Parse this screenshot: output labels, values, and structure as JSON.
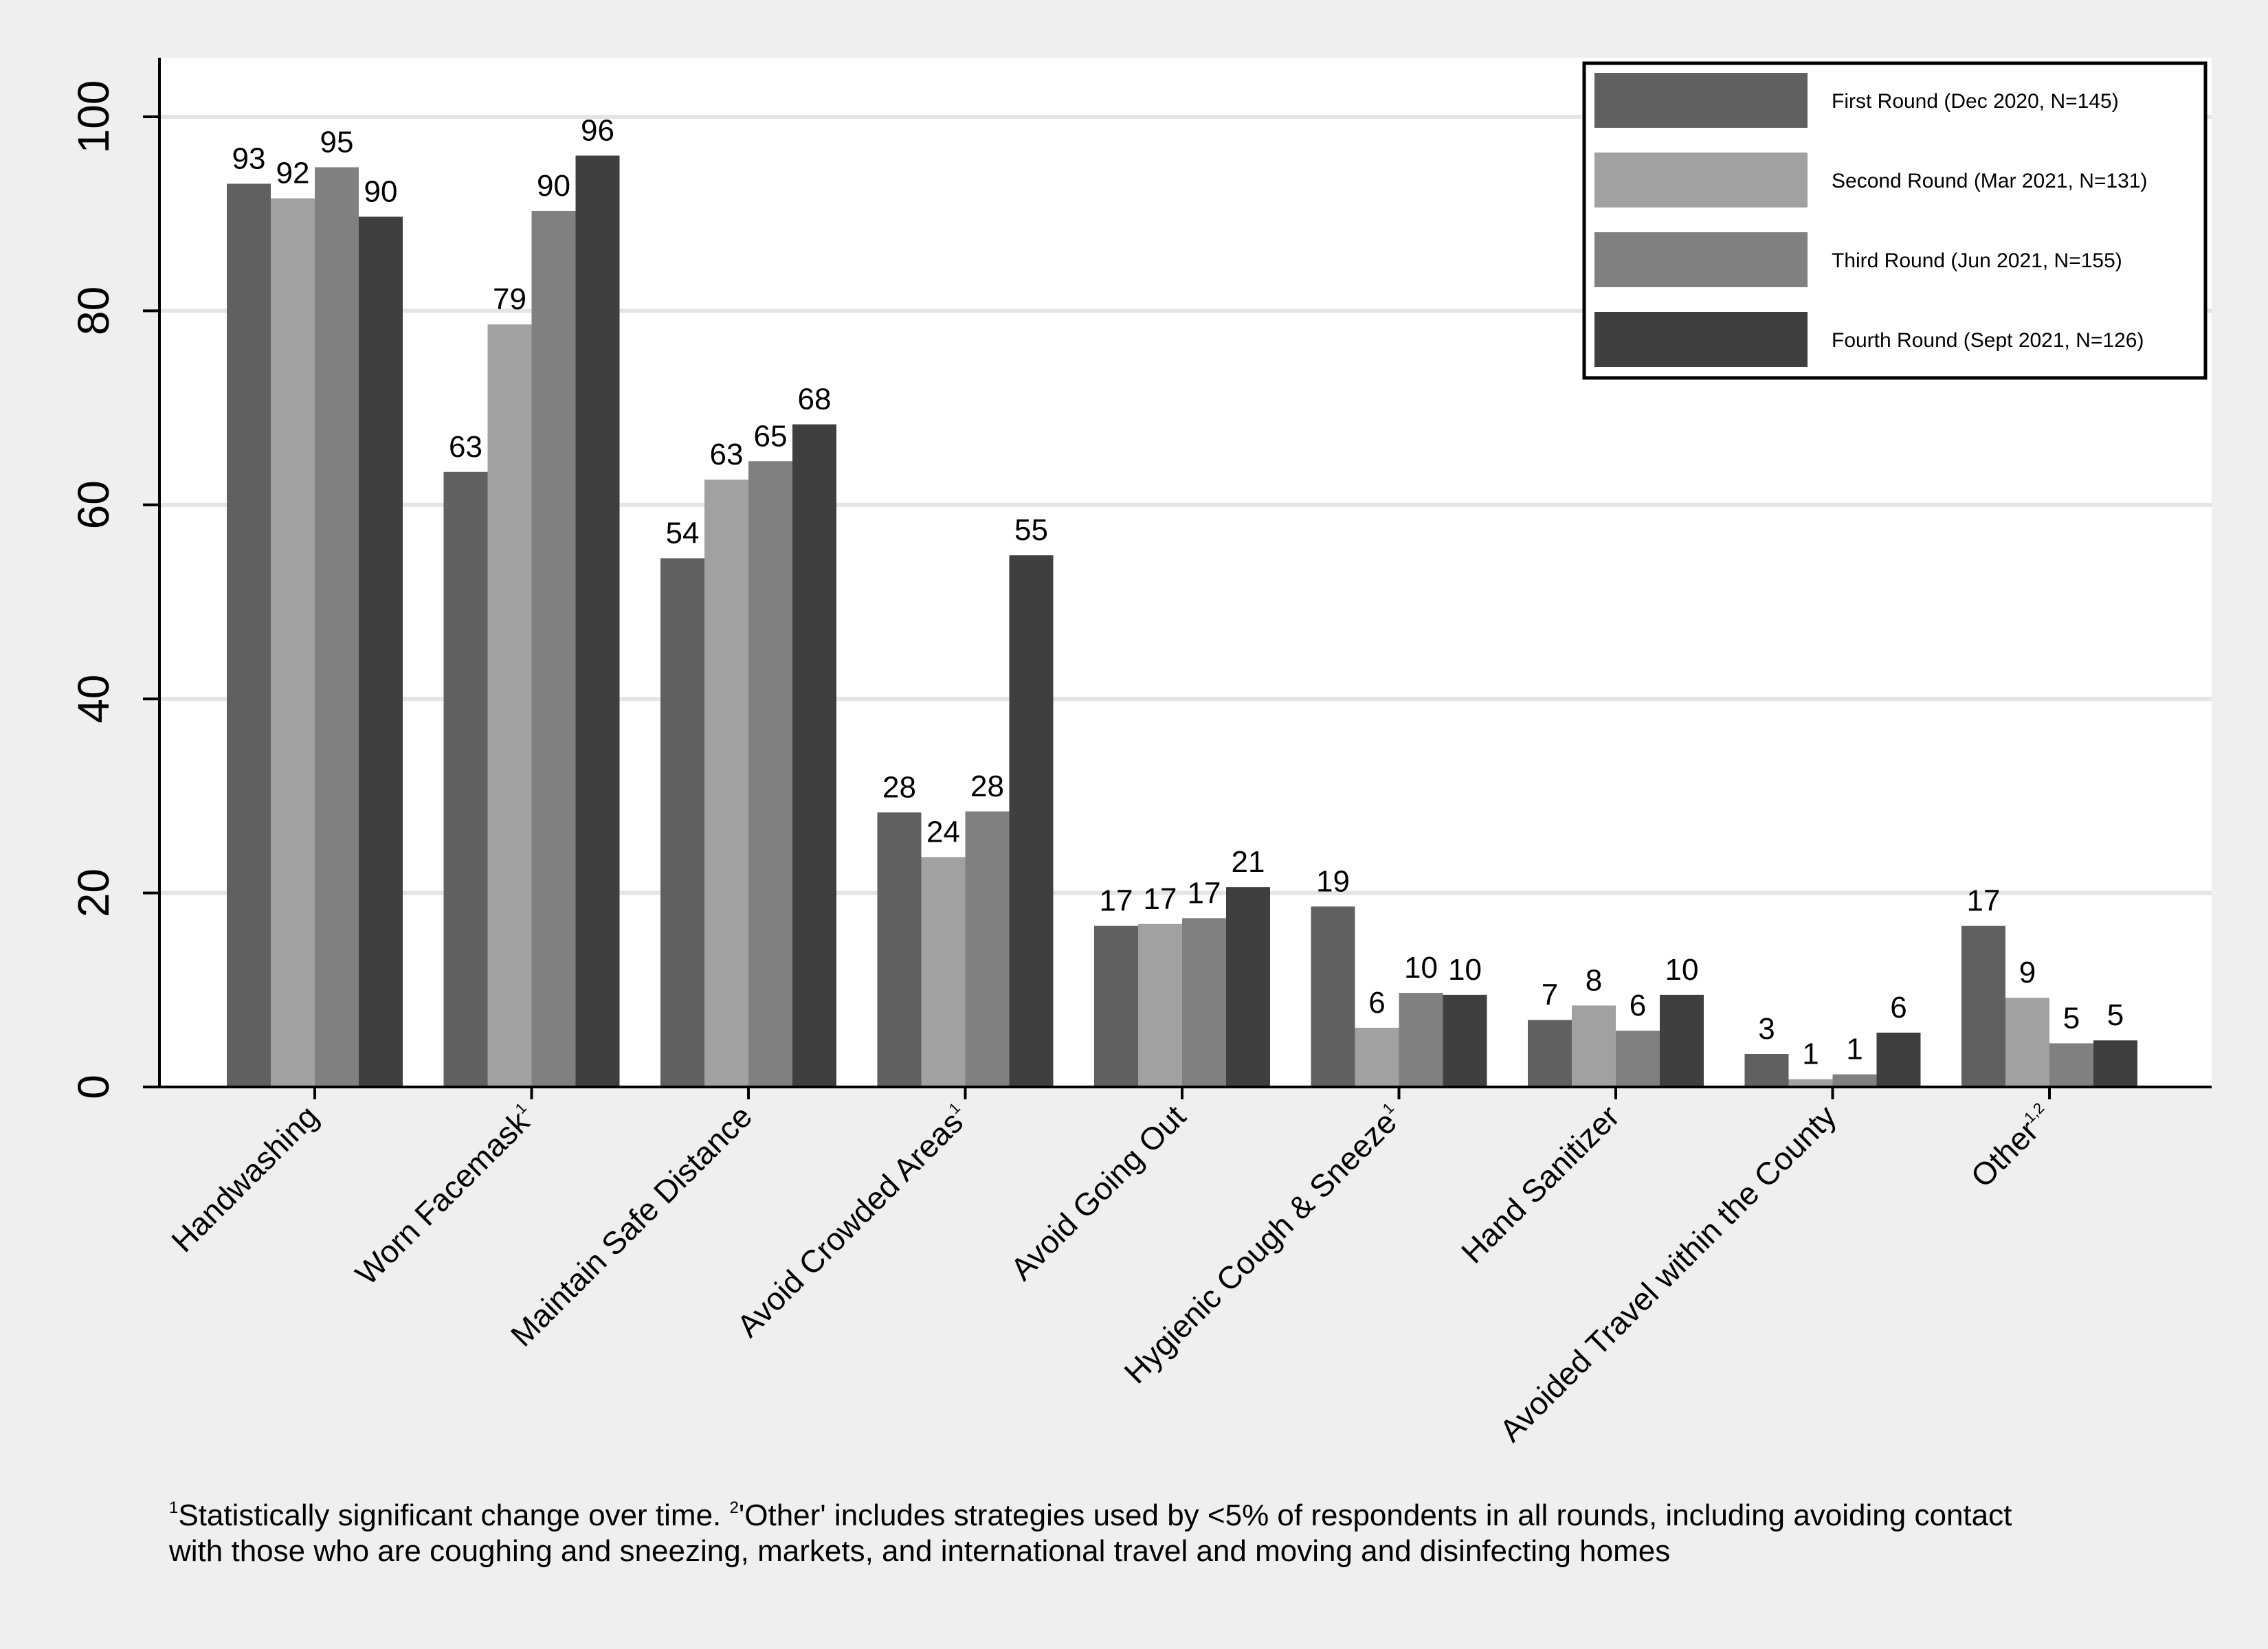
{
  "chart_data": {
    "type": "bar",
    "title": "",
    "xlabel": "",
    "ylabel": "",
    "ylim": [
      0,
      105
    ],
    "yticks": [
      0,
      20,
      40,
      60,
      80,
      100
    ],
    "grid": true,
    "legend_position": "top-right",
    "categories": [
      {
        "label": "Handwashing",
        "sup": ""
      },
      {
        "label": "Worn Facemask",
        "sup": "1"
      },
      {
        "label": "Maintain Safe Distance",
        "sup": ""
      },
      {
        "label": "Avoid Crowded Areas",
        "sup": "1"
      },
      {
        "label": "Avoid Going Out",
        "sup": ""
      },
      {
        "label": "Hygienic Cough & Sneeze",
        "sup": "1"
      },
      {
        "label": "Hand Sanitizer",
        "sup": ""
      },
      {
        "label": "Avoided Travel within the County",
        "sup": ""
      },
      {
        "label": "Other",
        "sup": "1,2"
      }
    ],
    "series": [
      {
        "name": "First Round (Dec 2020, N=145)",
        "color": "#606060",
        "values": [
          93.1,
          63.4,
          54.5,
          28.3,
          16.6,
          18.6,
          6.9,
          3.4,
          16.6
        ],
        "labels": [
          "93",
          "63",
          "54",
          "28",
          "17",
          "19",
          "7",
          "3",
          "17"
        ]
      },
      {
        "name": "Second Round (Mar 2021, N=131)",
        "color": "#a1a1a1",
        "values": [
          91.6,
          78.6,
          62.6,
          23.7,
          16.8,
          6.1,
          8.4,
          0.8,
          9.2
        ],
        "labels": [
          "92",
          "79",
          "63",
          "24",
          "17",
          "6",
          "8",
          "1",
          "9"
        ]
      },
      {
        "name": "Third Round (Jun 2021, N=155)",
        "color": "#808080",
        "values": [
          94.8,
          90.3,
          64.5,
          28.4,
          17.4,
          9.7,
          5.8,
          1.3,
          4.5
        ],
        "labels": [
          "95",
          "90",
          "65",
          "28",
          "17",
          "10",
          "6",
          "1",
          "5"
        ]
      },
      {
        "name": "Fourth Round (Sept 2021, N=126)",
        "color": "#3f3f3f",
        "values": [
          89.7,
          96.0,
          68.3,
          54.8,
          20.6,
          9.5,
          9.5,
          5.6,
          4.8
        ],
        "labels": [
          "90",
          "96",
          "68",
          "55",
          "21",
          "10",
          "10",
          "6",
          "5"
        ]
      }
    ]
  },
  "footnote": {
    "sup1": "1",
    "text1": "Statistically significant change over time. ",
    "sup2": "2",
    "text2": "'Other' includes strategies used by <5% of respondents in all rounds, including avoiding contact",
    "line2": "with those who are coughing and sneezing, markets, and international travel and moving and disinfecting homes"
  }
}
